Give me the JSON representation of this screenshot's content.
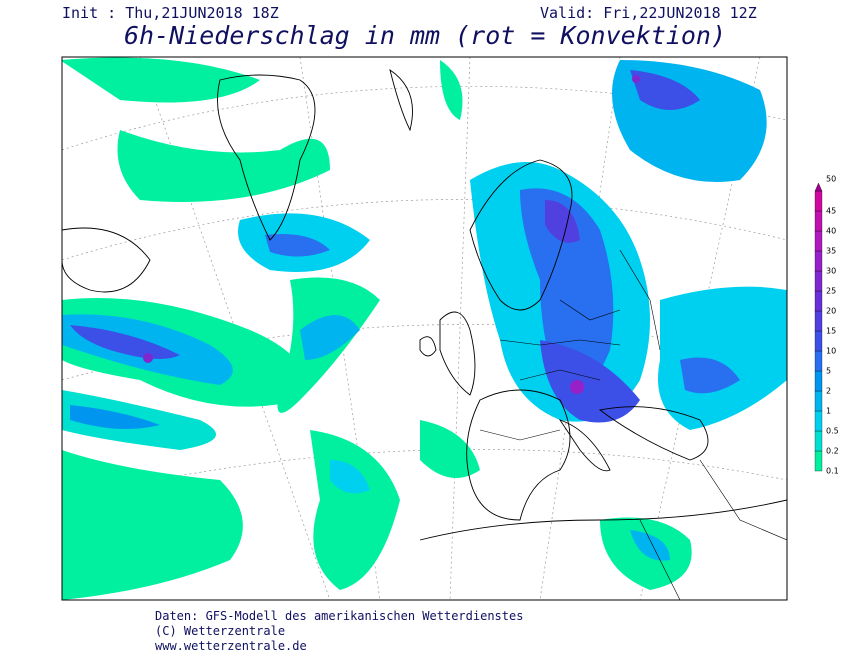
{
  "header": {
    "init": "Init : Thu,21JUN2018 18Z",
    "valid": "Valid: Fri,22JUN2018 12Z",
    "title": "6h-Niederschlag in mm (rot = Konvektion)"
  },
  "legend": {
    "items": [
      {
        "label": "0.1",
        "color": "#00f0a0"
      },
      {
        "label": "0.2",
        "color": "#00e0d0"
      },
      {
        "label": "0.5",
        "color": "#00d0f0"
      },
      {
        "label": "1",
        "color": "#00b4f0"
      },
      {
        "label": "2",
        "color": "#0096f0"
      },
      {
        "label": "5",
        "color": "#2870f0"
      },
      {
        "label": "10",
        "color": "#3c50e8"
      },
      {
        "label": "15",
        "color": "#5040e0"
      },
      {
        "label": "20",
        "color": "#6a30d8"
      },
      {
        "label": "25",
        "color": "#8028d0"
      },
      {
        "label": "30",
        "color": "#9820c8"
      },
      {
        "label": "35",
        "color": "#b018c0"
      },
      {
        "label": "40",
        "color": "#c010b0"
      },
      {
        "label": "45",
        "color": "#d008a0"
      },
      {
        "label": "50",
        "color": "#a00090"
      }
    ]
  },
  "footer": {
    "lines": [
      "Daten: GFS-Modell des amerikanischen Wetterdienstes",
      "(C) Wetterzentrale",
      "www.wetterzentrale.de"
    ]
  }
}
